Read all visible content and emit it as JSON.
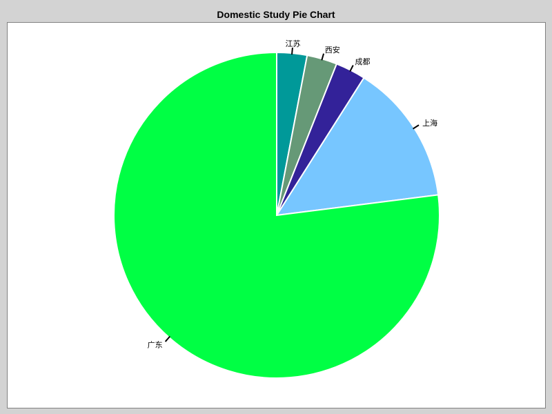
{
  "chart_data": {
    "type": "pie",
    "title": "Domestic Study Pie Chart",
    "start_angle_deg": 90,
    "direction": "clockwise",
    "slices": [
      {
        "label": "江苏",
        "value": 3,
        "color": "#009999"
      },
      {
        "label": "西安",
        "value": 3,
        "color": "#669977"
      },
      {
        "label": "成都",
        "value": 3,
        "color": "#332299"
      },
      {
        "label": "上海",
        "value": 14,
        "color": "#77c6ff"
      },
      {
        "label": "广东",
        "value": 77,
        "color": "#00ff44"
      }
    ]
  }
}
